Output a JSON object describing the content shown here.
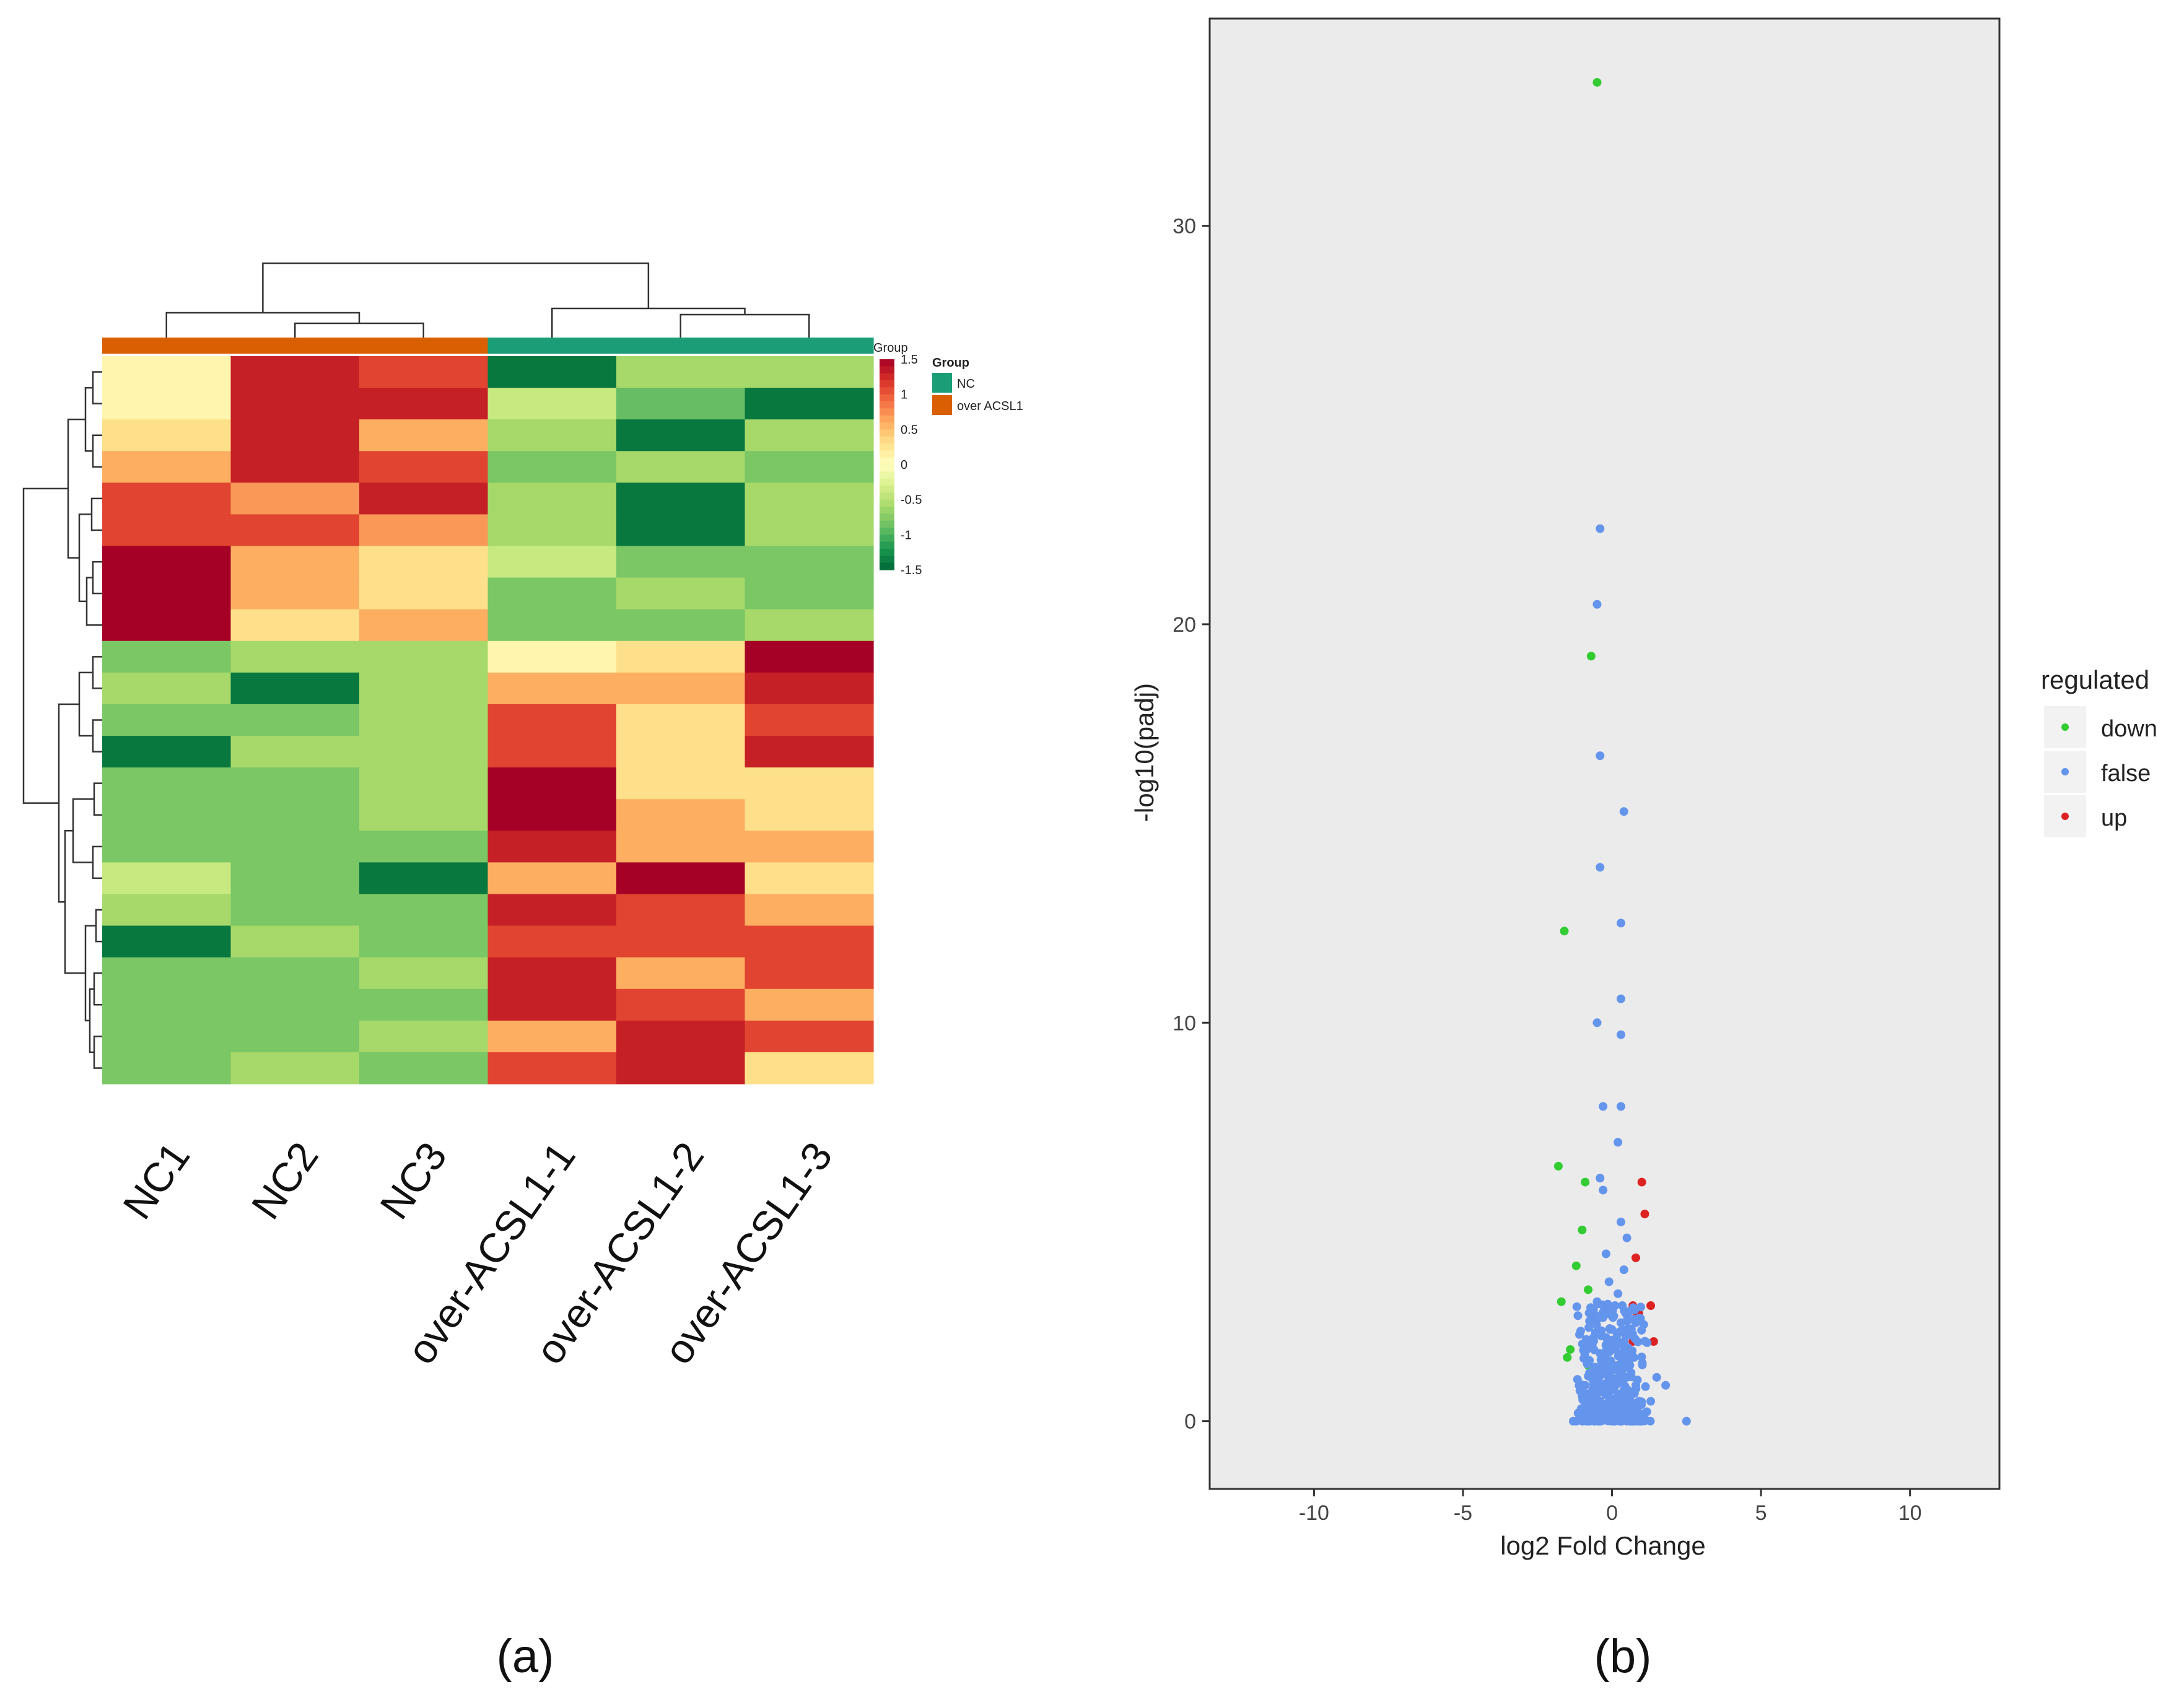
{
  "panels": {
    "a_label": "(a)",
    "b_label": "(b)"
  },
  "colors": {
    "heat_low": "#006837",
    "heat_mid": "#ffffbf",
    "heat_high": "#a50026",
    "group_nc": "#1b9e77",
    "group_over": "#d95f02",
    "down": "#33cc33",
    "false": "#6495ed",
    "up": "#dd2222",
    "plot_bg": "#ebebeb"
  },
  "chart_data": [
    {
      "type": "heatmap",
      "columns": [
        "NC1",
        "NC2",
        "NC3",
        "over-ACSL1-1",
        "over-ACSL1-2",
        "over-ACSL1-3"
      ],
      "column_groups": [
        "over ACSL1",
        "over ACSL1",
        "over ACSL1",
        "NC",
        "NC",
        "NC"
      ],
      "annotation_title": "Group",
      "legend": {
        "title": "Group",
        "entries": [
          {
            "label": "NC",
            "color": "#1b9e77"
          },
          {
            "label": "over ACSL1",
            "color": "#d95f02"
          }
        ]
      },
      "color_scale": {
        "ticks": [
          "1.5",
          "1",
          "0.5",
          "0",
          "-0.5",
          "-1",
          "-1.5"
        ],
        "tick_values": [
          1.5,
          1,
          0.5,
          0,
          -0.5,
          -1,
          -1.5
        ],
        "range": [
          -1.5,
          1.5
        ]
      },
      "values": [
        [
          0.1,
          1.3,
          1.1,
          -1.4,
          -0.6,
          -0.6
        ],
        [
          0.1,
          1.3,
          1.3,
          -0.4,
          -0.9,
          -1.4
        ],
        [
          0.3,
          1.3,
          0.6,
          -0.6,
          -1.4,
          -0.6
        ],
        [
          0.6,
          1.3,
          1.1,
          -0.8,
          -0.6,
          -0.8
        ],
        [
          1.1,
          0.7,
          1.3,
          -0.6,
          -1.4,
          -0.6
        ],
        [
          1.1,
          1.1,
          0.7,
          -0.6,
          -1.4,
          -0.6
        ],
        [
          1.6,
          0.6,
          0.3,
          -0.4,
          -0.8,
          -0.8
        ],
        [
          1.6,
          0.6,
          0.3,
          -0.8,
          -0.6,
          -0.8
        ],
        [
          1.6,
          0.3,
          0.6,
          -0.8,
          -0.8,
          -0.6
        ],
        [
          -0.8,
          -0.6,
          -0.6,
          0.1,
          0.3,
          1.6
        ],
        [
          -0.6,
          -1.4,
          -0.6,
          0.6,
          0.6,
          1.3
        ],
        [
          -0.8,
          -0.8,
          -0.6,
          1.1,
          0.3,
          1.1
        ],
        [
          -1.4,
          -0.6,
          -0.6,
          1.1,
          0.3,
          1.3
        ],
        [
          -0.8,
          -0.8,
          -0.6,
          1.6,
          0.3,
          0.3
        ],
        [
          -0.8,
          -0.8,
          -0.6,
          1.6,
          0.6,
          0.3
        ],
        [
          -0.8,
          -0.8,
          -0.8,
          1.3,
          0.6,
          0.6
        ],
        [
          -0.4,
          -0.8,
          -1.4,
          0.6,
          1.6,
          0.3
        ],
        [
          -0.6,
          -0.8,
          -0.8,
          1.3,
          1.1,
          0.6
        ],
        [
          -1.4,
          -0.6,
          -0.8,
          1.1,
          1.1,
          1.1
        ],
        [
          -0.8,
          -0.8,
          -0.6,
          1.3,
          0.6,
          1.1
        ],
        [
          -0.8,
          -0.8,
          -0.8,
          1.3,
          1.1,
          0.6
        ],
        [
          -0.8,
          -0.8,
          -0.6,
          0.6,
          1.3,
          1.1
        ],
        [
          -0.8,
          -0.6,
          -0.8,
          1.1,
          1.3,
          0.3
        ]
      ]
    },
    {
      "type": "scatter",
      "xlabel": "log2 Fold Change",
      "ylabel": "-log10(padj)",
      "xlim": [
        -13.5,
        13
      ],
      "ylim": [
        -1.7,
        35.2
      ],
      "xticks": [
        -10,
        -5,
        0,
        5,
        10
      ],
      "yticks": [
        0,
        10,
        20,
        30
      ],
      "grid": false,
      "legend": {
        "title": "regulated",
        "placement": "right"
      },
      "series": [
        {
          "name": "down",
          "points": [
            [
              -0.5,
              33.6
            ],
            [
              -0.7,
              19.2
            ],
            [
              -1.6,
              12.3
            ],
            [
              -1.8,
              6.4
            ],
            [
              -0.9,
              6.0
            ],
            [
              -1.0,
              4.8
            ],
            [
              -1.2,
              3.9
            ],
            [
              -0.8,
              3.3
            ],
            [
              -1.7,
              3.0
            ],
            [
              -1.4,
              1.8
            ],
            [
              -1.5,
              1.6
            ],
            [
              -0.7,
              1.9
            ],
            [
              -0.8,
              1.4
            ]
          ]
        },
        {
          "name": "false",
          "points": [
            [
              -0.4,
              22.4
            ],
            [
              -0.5,
              20.5
            ],
            [
              -0.4,
              16.7
            ],
            [
              0.4,
              15.3
            ],
            [
              -0.4,
              13.9
            ],
            [
              0.3,
              12.5
            ],
            [
              0.3,
              10.6
            ],
            [
              -0.5,
              10.0
            ],
            [
              0.3,
              9.7
            ],
            [
              -0.3,
              7.9
            ],
            [
              0.3,
              7.9
            ],
            [
              0.2,
              7.0
            ],
            [
              -0.4,
              6.1
            ],
            [
              -0.3,
              5.8
            ],
            [
              0.3,
              5.0
            ],
            [
              0.5,
              4.6
            ],
            [
              -0.2,
              4.2
            ],
            [
              0.4,
              3.8
            ],
            [
              -0.1,
              3.5
            ],
            [
              0.2,
              3.2
            ],
            [
              -0.5,
              3.0
            ],
            [
              0.1,
              2.9
            ],
            [
              -0.3,
              2.6
            ],
            [
              0.5,
              2.5
            ],
            [
              0.0,
              2.3
            ],
            [
              -0.2,
              2.1
            ],
            [
              0.4,
              2.0
            ],
            [
              0.1,
              1.8
            ],
            [
              -0.4,
              1.7
            ],
            [
              0.6,
              1.6
            ],
            [
              -0.1,
              1.5
            ],
            [
              0.3,
              1.4
            ],
            [
              0.0,
              1.3
            ],
            [
              -0.3,
              1.2
            ],
            [
              0.5,
              1.1
            ],
            [
              0.2,
              1.0
            ],
            [
              -0.5,
              0.9
            ],
            [
              0.8,
              0.9
            ],
            [
              0.0,
              0.8
            ],
            [
              -0.2,
              0.7
            ],
            [
              0.4,
              0.7
            ],
            [
              -0.7,
              0.6
            ],
            [
              0.6,
              0.6
            ],
            [
              0.1,
              0.5
            ],
            [
              -0.4,
              0.5
            ],
            [
              0.9,
              0.5
            ],
            [
              -0.1,
              0.4
            ],
            [
              0.3,
              0.4
            ],
            [
              -0.8,
              0.3
            ],
            [
              0.7,
              0.3
            ],
            [
              0.0,
              0.2
            ],
            [
              -0.5,
              0.2
            ],
            [
              0.5,
              0.2
            ],
            [
              1.1,
              0.2
            ],
            [
              -1.0,
              0.1
            ],
            [
              0.2,
              0.1
            ],
            [
              -0.2,
              0.05
            ],
            [
              0.8,
              0.05
            ],
            [
              -1.2,
              0.0
            ],
            [
              -0.6,
              0.0
            ],
            [
              0.0,
              0.0
            ],
            [
              0.6,
              0.0
            ],
            [
              1.0,
              0.0
            ],
            [
              -1.0,
              0.0
            ],
            [
              1.3,
              0.5
            ],
            [
              -0.9,
              0.9
            ],
            [
              1.5,
              1.1
            ],
            [
              1.8,
              0.9
            ],
            [
              2.5,
              0.0
            ],
            [
              -1.3,
              0.0
            ]
          ]
        },
        {
          "name": "up",
          "points": [
            [
              1.0,
              6.0
            ],
            [
              1.1,
              5.2
            ],
            [
              0.8,
              4.1
            ],
            [
              0.7,
              2.9
            ],
            [
              1.3,
              2.9
            ],
            [
              0.8,
              2.6
            ],
            [
              0.9,
              2.7
            ],
            [
              0.7,
              2.0
            ],
            [
              1.4,
              2.0
            ]
          ]
        }
      ]
    }
  ]
}
